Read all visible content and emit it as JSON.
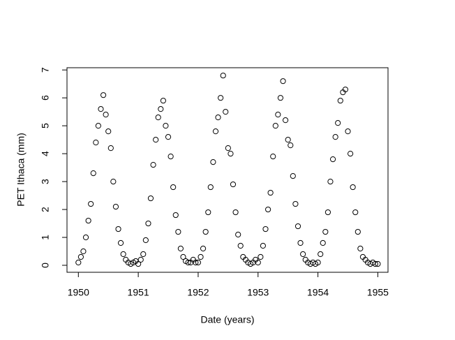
{
  "chart_data": {
    "type": "scatter",
    "x_label": "Date (years)",
    "y_label": "PET Ithaca (mm)",
    "x": [
      1950,
      1950.042,
      1950.083,
      1950.125,
      1950.167,
      1950.208,
      1950.25,
      1950.292,
      1950.333,
      1950.375,
      1950.417,
      1950.458,
      1950.5,
      1950.542,
      1950.583,
      1950.625,
      1950.667,
      1950.708,
      1950.75,
      1950.792,
      1950.833,
      1950.875,
      1950.917,
      1950.958,
      1951,
      1951.042,
      1951.083,
      1951.125,
      1951.167,
      1951.208,
      1951.25,
      1951.292,
      1951.333,
      1951.375,
      1951.417,
      1951.458,
      1951.5,
      1951.542,
      1951.583,
      1951.625,
      1951.667,
      1951.708,
      1951.75,
      1951.792,
      1951.833,
      1951.875,
      1951.917,
      1951.958,
      1952,
      1952.042,
      1952.083,
      1952.125,
      1952.167,
      1952.208,
      1952.25,
      1952.292,
      1952.333,
      1952.375,
      1952.417,
      1952.458,
      1952.5,
      1952.542,
      1952.583,
      1952.625,
      1952.667,
      1952.708,
      1952.75,
      1952.792,
      1952.833,
      1952.875,
      1952.917,
      1952.958,
      1953,
      1953.042,
      1953.083,
      1953.125,
      1953.167,
      1953.208,
      1953.25,
      1953.292,
      1953.333,
      1953.375,
      1953.417,
      1953.458,
      1953.5,
      1953.542,
      1953.583,
      1953.625,
      1953.667,
      1953.708,
      1953.75,
      1953.792,
      1953.833,
      1953.875,
      1953.917,
      1953.958,
      1954,
      1954.042,
      1954.083,
      1954.125,
      1954.167,
      1954.208,
      1954.25,
      1954.292,
      1954.333,
      1954.375,
      1954.417,
      1954.458,
      1954.5,
      1954.542,
      1954.583,
      1954.625,
      1954.667,
      1954.708,
      1954.75,
      1954.792,
      1954.833,
      1954.875,
      1954.917,
      1954.958,
      1955
    ],
    "values": [
      0.1,
      0.3,
      0.5,
      1.0,
      1.6,
      2.2,
      3.3,
      4.4,
      5.0,
      5.6,
      6.1,
      5.4,
      4.8,
      4.2,
      3.0,
      2.1,
      1.3,
      0.8,
      0.4,
      0.2,
      0.1,
      0.05,
      0.1,
      0.15,
      0.05,
      0.2,
      0.4,
      0.9,
      1.5,
      2.4,
      3.6,
      4.5,
      5.3,
      5.6,
      5.9,
      5.0,
      4.6,
      3.9,
      2.8,
      1.8,
      1.2,
      0.6,
      0.3,
      0.15,
      0.1,
      0.1,
      0.2,
      0.1,
      0.1,
      0.3,
      0.6,
      1.2,
      1.9,
      2.8,
      3.7,
      4.8,
      5.3,
      6.0,
      6.8,
      5.5,
      4.2,
      4.0,
      2.9,
      1.9,
      1.1,
      0.7,
      0.3,
      0.2,
      0.1,
      0.05,
      0.1,
      0.2,
      0.1,
      0.3,
      0.7,
      1.3,
      2.0,
      2.6,
      3.9,
      5.0,
      5.4,
      6.0,
      6.6,
      5.2,
      4.5,
      4.3,
      3.2,
      2.2,
      1.4,
      0.8,
      0.4,
      0.2,
      0.1,
      0.05,
      0.1,
      0.05,
      0.1,
      0.4,
      0.8,
      1.2,
      1.9,
      3.0,
      3.8,
      4.6,
      5.1,
      5.9,
      6.2,
      6.3,
      4.8,
      4.0,
      2.8,
      1.9,
      1.2,
      0.6,
      0.3,
      0.2,
      0.1,
      0.05,
      0.1,
      0.05,
      0.05
    ],
    "color": "#000000",
    "xlim": [
      1949.81,
      1955.17
    ],
    "ylim": [
      -0.25,
      7.08
    ],
    "xticks": [
      1950,
      1951,
      1952,
      1953,
      1954,
      1955
    ],
    "yticks": [
      0,
      1,
      2,
      3,
      4,
      5,
      6,
      7
    ]
  }
}
